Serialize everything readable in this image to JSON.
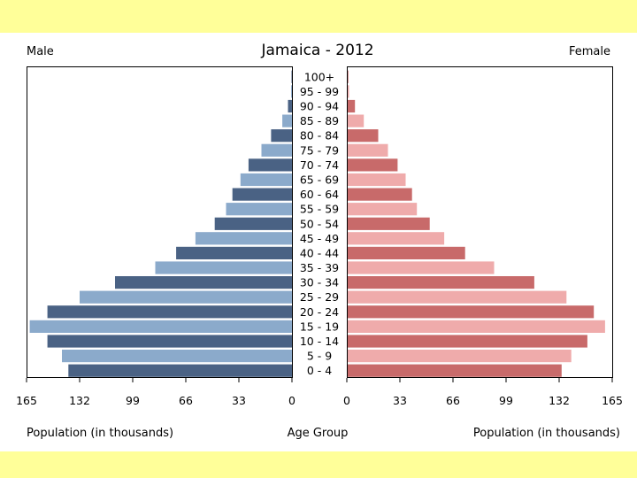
{
  "chart_data": {
    "type": "bar",
    "title": "Jamaica - 2012",
    "left_label": "Male",
    "right_label": "Female",
    "xlabel_left": "Population (in thousands)",
    "xlabel_center": "Age Group",
    "xlabel_right": "Population (in thousands)",
    "xlim": [
      0,
      165
    ],
    "ticks": [
      165,
      132,
      99,
      66,
      33,
      0
    ],
    "right_ticks": [
      0,
      33,
      66,
      99,
      132,
      165
    ],
    "categories": [
      "100+",
      "95 - 99",
      "90 - 94",
      "85 - 89",
      "80 - 84",
      "75 - 79",
      "70 - 74",
      "65 - 69",
      "60 - 64",
      "55 - 59",
      "50 - 54",
      "45 - 49",
      "40 - 44",
      "35 - 39",
      "30 - 34",
      "25 - 29",
      "20 - 24",
      "15 - 19",
      "10 - 14",
      "5 - 9",
      "0 - 4"
    ],
    "series": [
      {
        "name": "Male",
        "values": [
          0.3,
          0.5,
          2.5,
          6,
          13,
          19,
          27,
          32,
          37,
          41,
          48,
          60,
          72,
          85,
          110,
          132,
          152,
          163,
          152,
          143,
          139
        ]
      },
      {
        "name": "Female",
        "values": [
          0.4,
          0.8,
          4.5,
          10,
          19,
          25,
          31,
          36,
          40,
          43,
          51,
          60,
          73,
          91,
          116,
          136,
          153,
          160,
          149,
          139,
          133
        ]
      }
    ],
    "colors": {
      "male_dark": "#4a6284",
      "male_light": "#8baacb",
      "female_dark": "#c86a6a",
      "female_light": "#efabab",
      "band": "#ffff99"
    }
  }
}
